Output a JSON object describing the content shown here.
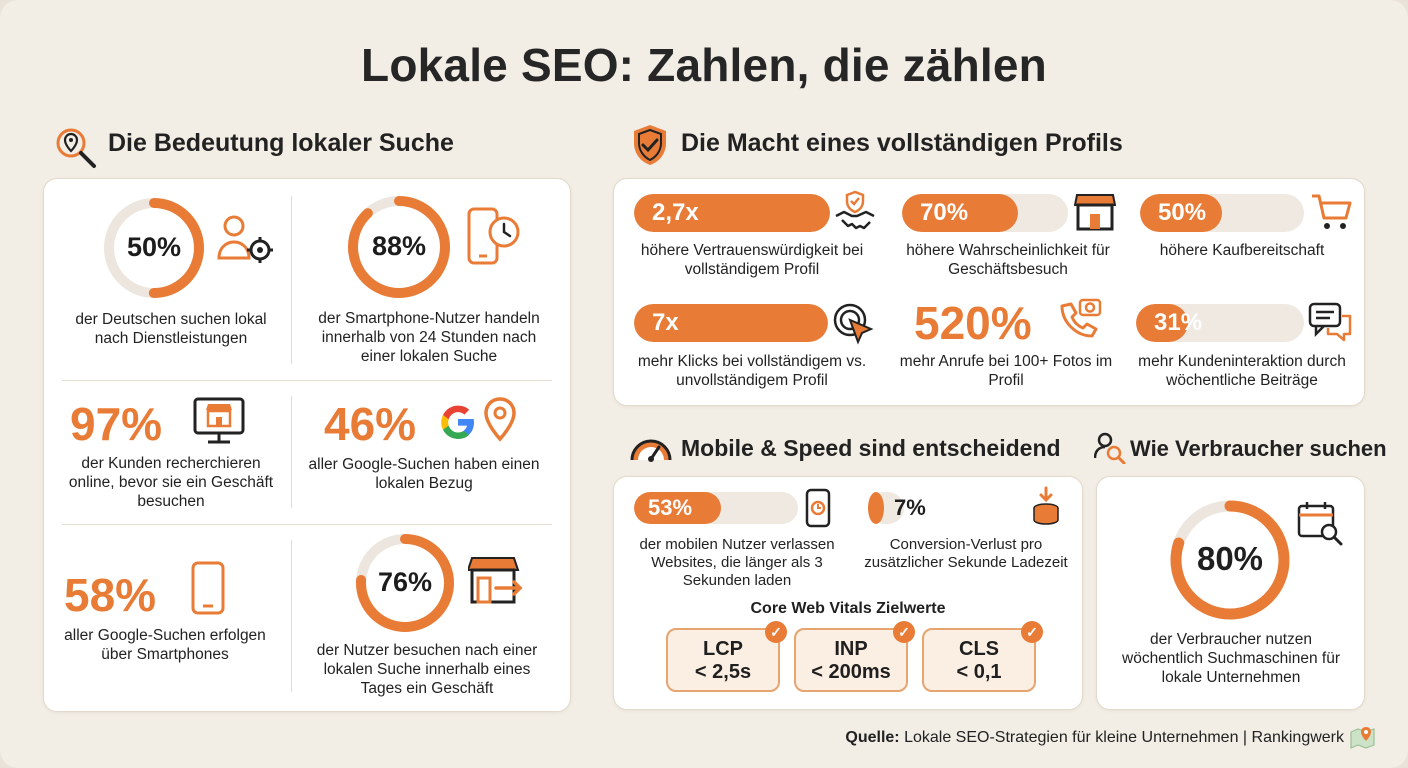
{
  "title": "Lokale SEO: Zahlen, die zählen",
  "section1": {
    "heading": "Die Bedeutung lokaler Suche",
    "stats": [
      {
        "value": "50%",
        "text": "der Deutschen suchen lokal nach Dienstleistungen",
        "ring": 0.5
      },
      {
        "value": "88%",
        "text": "der Smartphone-Nutzer handeln innerhalb von 24 Stunden nach einer lokalen Suche",
        "ring": 0.88
      },
      {
        "value": "97%",
        "text": "der Kunden recherchieren online, bevor sie ein Geschäft besuchen"
      },
      {
        "value": "46%",
        "text": "aller Google-Suchen haben einen lokalen Bezug"
      },
      {
        "value": "58%",
        "text": "aller Google-Suchen erfolgen über Smartphones"
      },
      {
        "value": "76%",
        "text": "der Nutzer besuchen nach einer lokalen Suche innerhalb eines Tages ein Geschäft",
        "ring": 0.76
      }
    ]
  },
  "section2": {
    "heading": "Die Macht eines vollständigen Profils",
    "stats": [
      {
        "value": "2,7x",
        "text": "höhere Vertrauenswürdigkeit bei vollständigem Profil",
        "fill": 1.0
      },
      {
        "value": "70%",
        "text": "höhere Wahrscheinlichkeit für Geschäftsbesuch",
        "fill": 0.7
      },
      {
        "value": "50%",
        "text": "höhere Kaufbereitschaft",
        "fill": 0.5
      },
      {
        "value": "7x",
        "text": "mehr Klicks bei vollständigem vs. unvollständigem Profil",
        "fill": 1.0
      },
      {
        "value": "520%",
        "text": "mehr Anrufe bei 100+ Fotos im Profil"
      },
      {
        "value": "31%",
        "text": "mehr Kundeninteraktion durch wöchentliche Beiträge",
        "fill": 0.31
      }
    ]
  },
  "section3": {
    "heading": "Mobile & Speed sind entscheidend",
    "stats": [
      {
        "value": "53%",
        "text": "der mobilen Nutzer verlassen Websites, die länger als 3 Sekunden laden",
        "fill": 0.53
      },
      {
        "value": "7%",
        "text": "Conversion-Verlust pro zusätzlicher Sekunde Ladezeit",
        "fill": 0.07
      }
    ],
    "cwv_title": "Core Web Vitals Zielwerte",
    "cwv": [
      {
        "name": "LCP",
        "target": "< 2,5s"
      },
      {
        "name": "INP",
        "target": "< 200ms"
      },
      {
        "name": "CLS",
        "target": "< 0,1"
      }
    ]
  },
  "section4": {
    "heading": "Wie Verbraucher suchen",
    "value": "80%",
    "ring": 0.8,
    "text": "der Verbraucher nutzen wöchentlich Suchmaschinen für lokale Unternehmen"
  },
  "source": {
    "label": "Quelle:",
    "text": "Lokale SEO-Strategien für kleine Unternehmen | Rankingwerk"
  },
  "colors": {
    "accent": "#e87c37",
    "track": "#ece6de",
    "background": "#f2ede5"
  }
}
